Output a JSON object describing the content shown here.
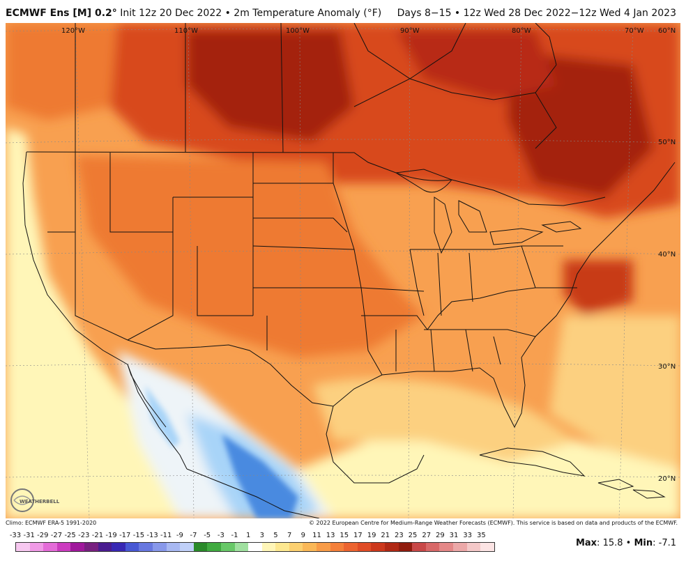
{
  "header": {
    "model": "ECMWF Ens [M] 0.2°",
    "init": "Init 12z 20 Dec 2022 • 2m Temperature Anomaly (°F)",
    "valid": "Days 8−15 • 12z Wed 28 Dec 2022−12z Wed 4 Jan 2023"
  },
  "map": {
    "longitudes": [
      "120°W",
      "110°W",
      "100°W",
      "90°W",
      "80°W",
      "70°W"
    ],
    "latitudes": [
      "60°N",
      "50°N",
      "40°N",
      "30°N",
      "20°N"
    ],
    "colors": {
      "deep_warm": "#a42010",
      "warm": "#d84a1e",
      "moderate": "#ee7a32",
      "mild": "#f8a050",
      "slight": "#fcd080",
      "neutral": "#fff6b8",
      "cool_neutral": "#eef4f8",
      "cool": "#a8d4f8",
      "cold": "#4a8ae0"
    }
  },
  "footer": {
    "climo": "Climo: ECMWF ERA-5 1991-2020",
    "copyright": "© 2022 European Centre for Medium-Range Weather Forecasts (ECMWF). This service is based on data and products of the ECMWF.",
    "logo_text": "WEATHERBELL",
    "max_label": "Max",
    "max_value": "15.8",
    "min_label": "Min",
    "min_value": "-7.1"
  },
  "legend": {
    "labels": [
      "-33",
      "-31",
      "-29",
      "-27",
      "-25",
      "-23",
      "-21",
      "-19",
      "-17",
      "-15",
      "-13",
      "-11",
      "-9",
      "-7",
      "-5",
      "-3",
      "-1",
      "1",
      "3",
      "5",
      "7",
      "9",
      "11",
      "13",
      "15",
      "17",
      "19",
      "21",
      "23",
      "25",
      "27",
      "29",
      "31",
      "33",
      "35"
    ],
    "colors": [
      "#f7c8f0",
      "#f09ae6",
      "#e46cd8",
      "#cc3cc0",
      "#a0189c",
      "#782080",
      "#4a1c90",
      "#3828b4",
      "#4858d4",
      "#6878e0",
      "#8898ea",
      "#a8b8f2",
      "#c0d0f8",
      "#2a8a2a",
      "#40aa40",
      "#68c868",
      "#a0e0a0",
      "#ffffff",
      "#fff6b8",
      "#fde890",
      "#fcd070",
      "#fab858",
      "#f89c48",
      "#f4803a",
      "#ec6430",
      "#e04c26",
      "#cc381c",
      "#b02814",
      "#901c0e",
      "#c84848",
      "#d86868",
      "#e48888",
      "#eca8a8",
      "#f4c8c8",
      "#fce4e4"
    ]
  }
}
